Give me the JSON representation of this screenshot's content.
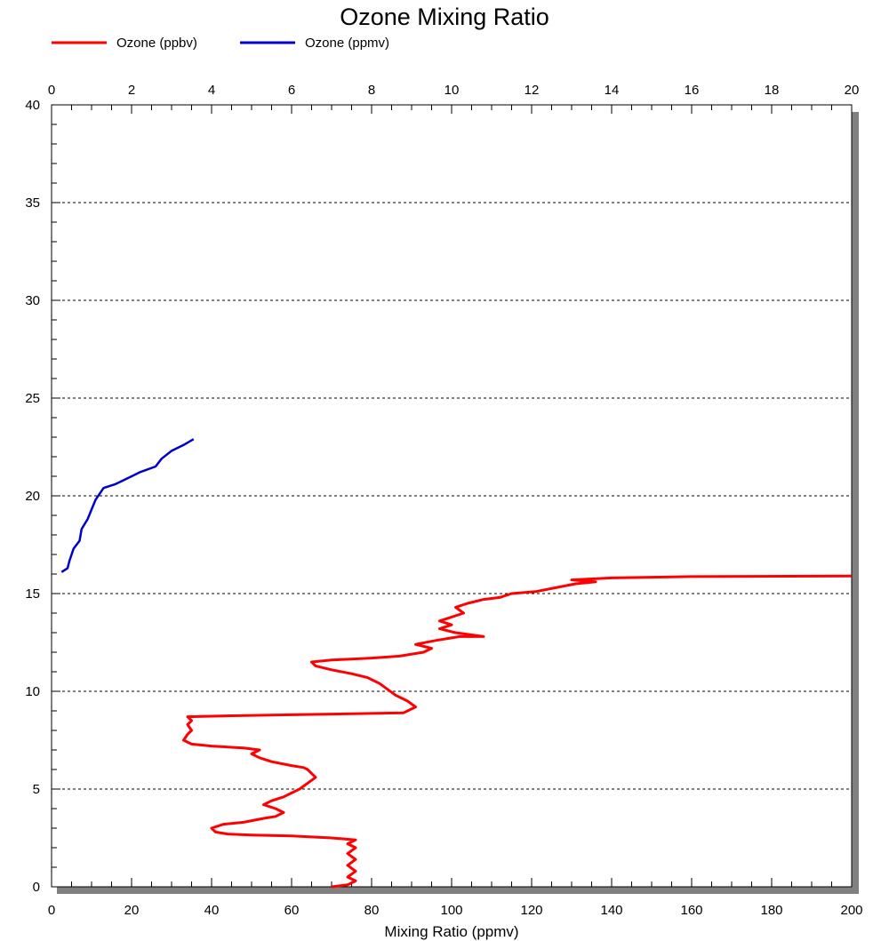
{
  "chart_data": {
    "type": "line",
    "title": "Ozone Mixing Ratio",
    "xlabel": "Mixing Ratio (ppmv)",
    "ylabel": "",
    "legend_position": "top-left",
    "grid": "horizontal-dashed",
    "bottom_axis": {
      "min": 0,
      "max": 200,
      "ticks": [
        0,
        20,
        40,
        60,
        80,
        100,
        120,
        140,
        160,
        180,
        200
      ]
    },
    "top_axis": {
      "min": 0,
      "max": 20,
      "ticks": [
        0,
        2,
        4,
        6,
        8,
        10,
        12,
        14,
        16,
        18,
        20
      ]
    },
    "left_axis": {
      "min": 0,
      "max": 40,
      "ticks": [
        0,
        5,
        10,
        15,
        20,
        25,
        30,
        35,
        40
      ]
    },
    "series": [
      {
        "name": "Ozone (ppbv)",
        "color": "#ff0000",
        "axis": "bottom",
        "points": [
          [
            70,
            0.0
          ],
          [
            74,
            0.1
          ],
          [
            76,
            0.3
          ],
          [
            74,
            0.5
          ],
          [
            76,
            0.8
          ],
          [
            74,
            1.1
          ],
          [
            76,
            1.4
          ],
          [
            74,
            1.7
          ],
          [
            76,
            2.0
          ],
          [
            74,
            2.2
          ],
          [
            76,
            2.4
          ],
          [
            70,
            2.5
          ],
          [
            60,
            2.6
          ],
          [
            50,
            2.65
          ],
          [
            44,
            2.7
          ],
          [
            41,
            2.8
          ],
          [
            40,
            3.0
          ],
          [
            43,
            3.2
          ],
          [
            48,
            3.3
          ],
          [
            53,
            3.5
          ],
          [
            56,
            3.6
          ],
          [
            58,
            3.8
          ],
          [
            56,
            4.0
          ],
          [
            53,
            4.2
          ],
          [
            55,
            4.4
          ],
          [
            58,
            4.6
          ],
          [
            60,
            4.8
          ],
          [
            62,
            5.0
          ],
          [
            64,
            5.3
          ],
          [
            66,
            5.6
          ],
          [
            65,
            5.8
          ],
          [
            64,
            6.0
          ],
          [
            63,
            6.1
          ],
          [
            60,
            6.2
          ],
          [
            55,
            6.4
          ],
          [
            52,
            6.6
          ],
          [
            50,
            6.8
          ],
          [
            52,
            7.0
          ],
          [
            48,
            7.1
          ],
          [
            40,
            7.2
          ],
          [
            35,
            7.3
          ],
          [
            33,
            7.5
          ],
          [
            34,
            7.8
          ],
          [
            35,
            8.0
          ],
          [
            34,
            8.3
          ],
          [
            35,
            8.5
          ],
          [
            34,
            8.7
          ],
          [
            45,
            8.75
          ],
          [
            60,
            8.8
          ],
          [
            75,
            8.85
          ],
          [
            88,
            8.9
          ],
          [
            91,
            9.2
          ],
          [
            89,
            9.5
          ],
          [
            86,
            9.8
          ],
          [
            84,
            10.1
          ],
          [
            82,
            10.4
          ],
          [
            79,
            10.7
          ],
          [
            75,
            10.9
          ],
          [
            70,
            11.1
          ],
          [
            66,
            11.3
          ],
          [
            65,
            11.5
          ],
          [
            70,
            11.6
          ],
          [
            80,
            11.7
          ],
          [
            87,
            11.8
          ],
          [
            93,
            12.0
          ],
          [
            95,
            12.2
          ],
          [
            91,
            12.4
          ],
          [
            96,
            12.6
          ],
          [
            102,
            12.8
          ],
          [
            108,
            12.8
          ],
          [
            101,
            13.0
          ],
          [
            97,
            13.2
          ],
          [
            100,
            13.4
          ],
          [
            97,
            13.6
          ],
          [
            100,
            13.8
          ],
          [
            103,
            14.0
          ],
          [
            101,
            14.3
          ],
          [
            104,
            14.5
          ],
          [
            108,
            14.7
          ],
          [
            112,
            14.8
          ],
          [
            115,
            15.0
          ],
          [
            121,
            15.1
          ],
          [
            126,
            15.3
          ],
          [
            131,
            15.5
          ],
          [
            136,
            15.6
          ],
          [
            130,
            15.7
          ],
          [
            140,
            15.8
          ],
          [
            160,
            15.87
          ],
          [
            200,
            15.9
          ]
        ]
      },
      {
        "name": "Ozone (ppmv)",
        "color": "#0000cc",
        "axis": "top",
        "points": [
          [
            0.25,
            16.1
          ],
          [
            0.4,
            16.3
          ],
          [
            0.45,
            16.7
          ],
          [
            0.55,
            17.3
          ],
          [
            0.7,
            17.7
          ],
          [
            0.75,
            18.3
          ],
          [
            0.9,
            18.8
          ],
          [
            1.0,
            19.3
          ],
          [
            1.1,
            19.8
          ],
          [
            1.2,
            20.1
          ],
          [
            1.3,
            20.4
          ],
          [
            1.6,
            20.6
          ],
          [
            1.9,
            20.9
          ],
          [
            2.2,
            21.2
          ],
          [
            2.6,
            21.5
          ],
          [
            2.75,
            21.9
          ],
          [
            3.0,
            22.3
          ],
          [
            3.3,
            22.6
          ],
          [
            3.55,
            22.9
          ]
        ]
      }
    ]
  }
}
